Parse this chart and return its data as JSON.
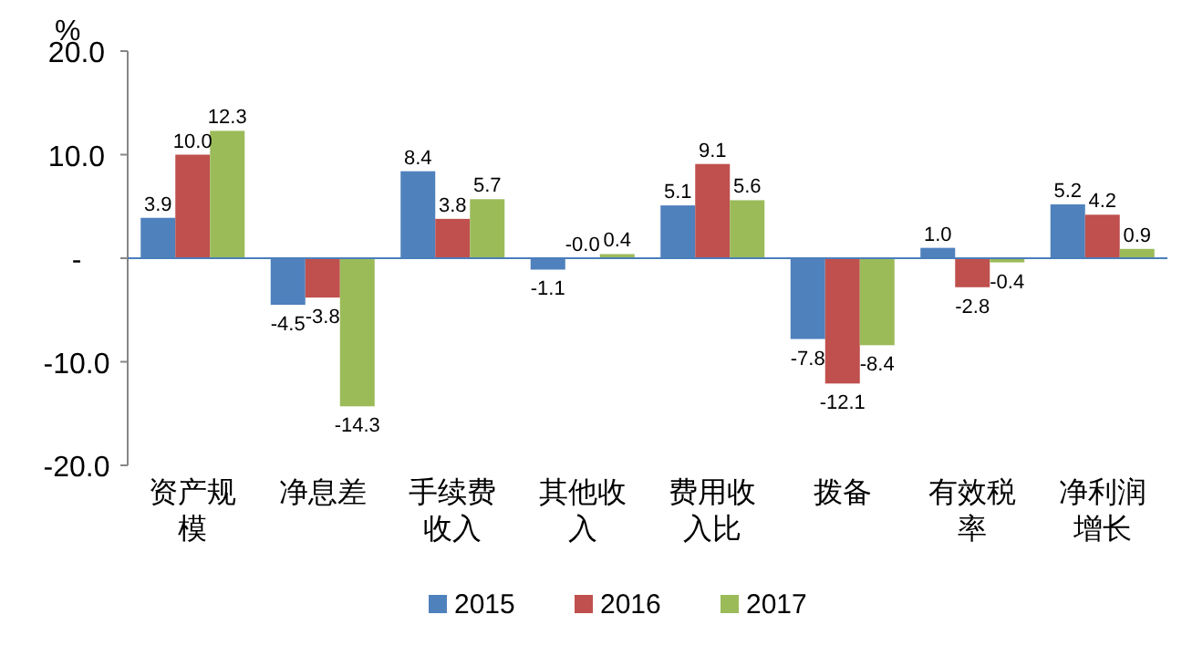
{
  "chart_data": {
    "type": "bar",
    "ylabel": "%",
    "categories": [
      "资产规模",
      "净息差",
      "手续费收入",
      "其他收入",
      "费用收入比",
      "拨备",
      "有效税率",
      "净利润增长"
    ],
    "series": [
      {
        "name": "2015",
        "color": "#4f81bd",
        "values": [
          3.9,
          -4.5,
          8.4,
          -1.1,
          5.1,
          -7.8,
          1.0,
          5.2
        ],
        "value_labels": [
          "3.9",
          "-4.5",
          "8.4",
          "-1.1",
          "5.1",
          "-7.8",
          "1.0",
          "5.2"
        ]
      },
      {
        "name": "2016",
        "color": "#c0504d",
        "values": [
          10.0,
          -3.8,
          3.8,
          -0.0,
          9.1,
          -12.1,
          -2.8,
          4.2
        ],
        "value_labels": [
          "10.0",
          "-3.8",
          "3.8",
          "-0.0",
          "9.1",
          "-12.1",
          "-2.8",
          "4.2"
        ]
      },
      {
        "name": "2017",
        "color": "#9bbb59",
        "values": [
          12.3,
          -14.3,
          5.7,
          0.4,
          5.6,
          -8.4,
          -0.4,
          0.9
        ],
        "value_labels": [
          "12.3",
          "-14.3",
          "5.7",
          "0.4",
          "5.6",
          "-8.4",
          "-0.4",
          "0.9"
        ]
      }
    ],
    "ylim": [
      -20,
      20
    ],
    "yticks": [
      {
        "value": 20,
        "label": "20.0"
      },
      {
        "value": 10,
        "label": "10.0"
      },
      {
        "value": 0,
        "label": "-"
      },
      {
        "value": -10,
        "label": "-10.0"
      },
      {
        "value": -20,
        "label": "-20.0"
      }
    ],
    "ref_lines": [
      {
        "axis": "y",
        "value": 0,
        "color": "#4a7ebb"
      }
    ],
    "grid": false,
    "legend": "bottom"
  }
}
